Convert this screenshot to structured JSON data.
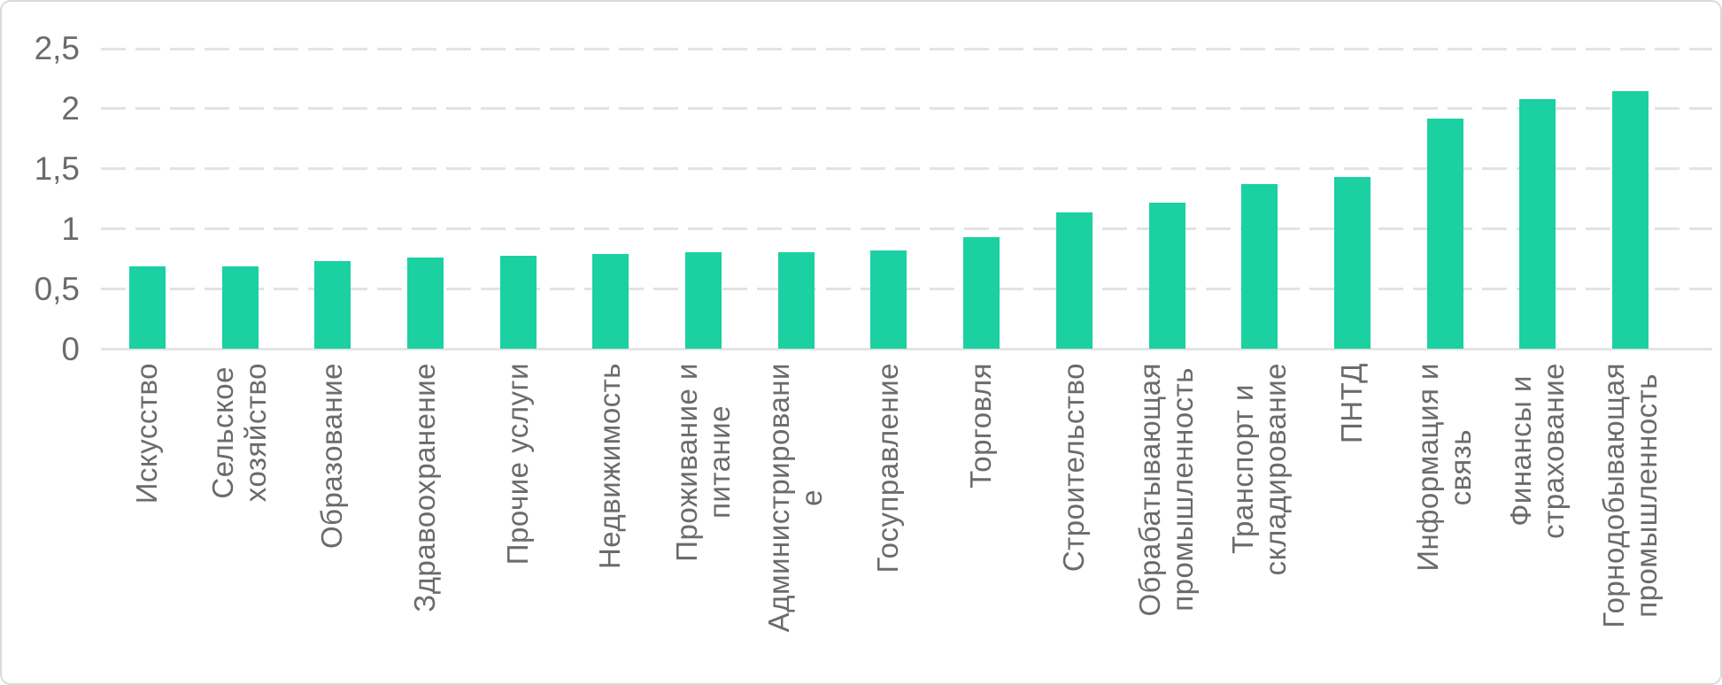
{
  "colors": {
    "bar": "#1BD0A1",
    "axis_text": "#6B6B6B",
    "gridline": "#E3E3E3",
    "baseline": "#E4E4E4",
    "card_border": "#D9DADB",
    "background": "#FFFFFF"
  },
  "chart_data": {
    "type": "bar",
    "title": "",
    "xlabel": "",
    "ylabel": "",
    "legend": "none",
    "grid": "horizontal-dashed",
    "bar_color": "#1BD0A1",
    "decimal_separator": ",",
    "ylim": [
      0,
      2.5
    ],
    "ytick_values": [
      0,
      0.5,
      1,
      1.5,
      2,
      2.5
    ],
    "ytick_labels": [
      "0",
      "0,5",
      "1",
      "1,5",
      "2",
      "2,5"
    ],
    "categories": [
      "Искусство",
      "Сельское хозяйство",
      "Образование",
      "Здравоохранение",
      "Прочие услуги",
      "Недвижимость",
      "Проживание и питание",
      "Администрирование",
      "Госуправление",
      "Торговля",
      "Строительство",
      "Обрабатывающая промышленность",
      "Транспорт и складирование",
      "ПНТД",
      "Информация и связь",
      "Финансы и страхование",
      "Горнодобывающая промышленность"
    ],
    "category_label_lines": [
      [
        "Искусство"
      ],
      [
        "Сельское",
        "хозяйство"
      ],
      [
        "Образование"
      ],
      [
        "Здравоохранение"
      ],
      [
        "Прочие услуги"
      ],
      [
        "Недвижимость"
      ],
      [
        "Проживание и",
        "питание"
      ],
      [
        "Администрировани",
        "е"
      ],
      [
        "Госуправление"
      ],
      [
        "Торговля"
      ],
      [
        "Строительство"
      ],
      [
        "Обрабатывающая",
        "промышленность"
      ],
      [
        "Транспорт и",
        "складирование"
      ],
      [
        "ПНТД"
      ],
      [
        "Информация и",
        "связь"
      ],
      [
        "Финансы и",
        "страхование"
      ],
      [
        "Горнодобывающая",
        "промышленность"
      ]
    ],
    "values": [
      0.69,
      0.69,
      0.73,
      0.76,
      0.78,
      0.79,
      0.81,
      0.81,
      0.82,
      0.93,
      1.14,
      1.22,
      1.37,
      1.43,
      1.92,
      2.08,
      2.15
    ]
  }
}
